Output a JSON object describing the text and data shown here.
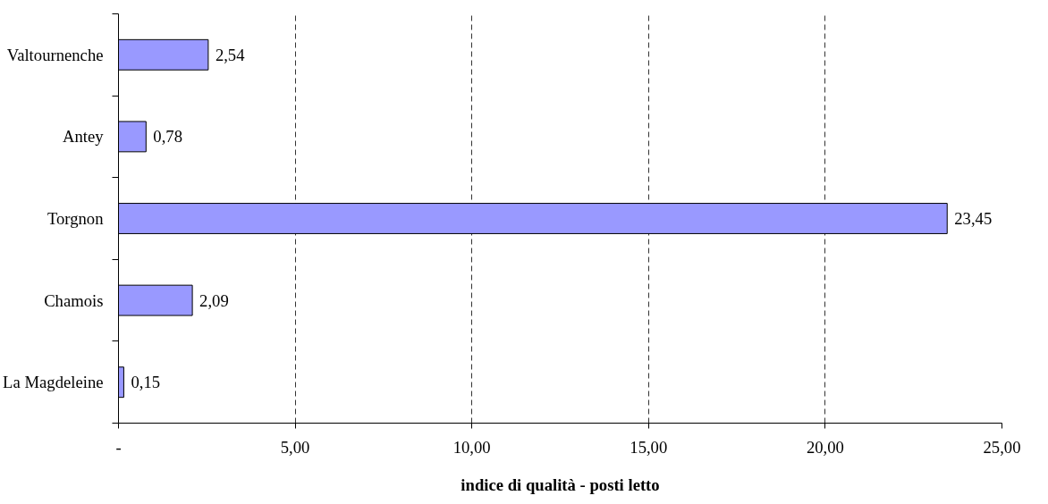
{
  "chart_data": {
    "type": "bar",
    "orientation": "horizontal",
    "xlabel": "indice di qualità - posti letto",
    "categories": [
      "Valtournenche",
      "Antey",
      "Torgnon",
      "Chamois",
      "La Magdeleine"
    ],
    "values": [
      2.54,
      0.78,
      23.45,
      2.09,
      0.15
    ],
    "value_labels": [
      "2,54",
      "0,78",
      "23,45",
      "2,09",
      "0,15"
    ],
    "color": "#9999ff",
    "xlim": [
      0,
      25
    ],
    "xticks": [
      {
        "value": 0,
        "label": "-"
      },
      {
        "value": 5,
        "label": "5,00"
      },
      {
        "value": 10,
        "label": "10,00"
      },
      {
        "value": 15,
        "label": "15,00"
      },
      {
        "value": 20,
        "label": "20,00"
      },
      {
        "value": 25,
        "label": "25,00"
      }
    ],
    "grid": "x"
  }
}
